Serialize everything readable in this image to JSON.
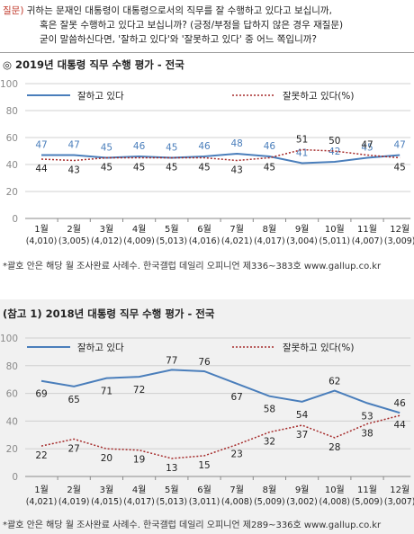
{
  "question": {
    "tag": "질문)",
    "line1": " 귀하는 문재인 대통령이 대통령으로서의 직무를 잘 수행하고 있다고 보십니까,",
    "line2": "혹은 잘못 수행하고 있다고 보십니까? (긍정/부정을 답하지 않은 경우 재질문)",
    "line3": "굳이 말씀하신다면, '잘하고 있다'와 '잘못하고 있다' 중 어느 쪽입니까?"
  },
  "colors": {
    "positive": "#4a7ebb",
    "negative": "#a52a2a",
    "axis": "#8a8a8a",
    "grid": "#d0d0d0"
  },
  "chart_data": [
    {
      "type": "line",
      "title": "◎  2019년 대통령 직무 수행 평가 - 전국",
      "categories": [
        "1월",
        "2월",
        "3월",
        "4월",
        "5월",
        "6월",
        "7월",
        "8월",
        "9월",
        "10월",
        "11월",
        "12월"
      ],
      "sample_sizes": [
        "(4,010)",
        "(3,005)",
        "(4,012)",
        "(4,009)",
        "(5,013)",
        "(4,016)",
        "(4,021)",
        "(4,017)",
        "(3,004)",
        "(5,011)",
        "(4,007)",
        "(3,009)"
      ],
      "ylim": [
        0,
        100
      ],
      "yticks": [
        "0",
        "20",
        "40",
        "60",
        "80",
        "100"
      ],
      "series": [
        {
          "name": "잘하고 있다",
          "style": "solid",
          "values": [
            47,
            47,
            45,
            46,
            45,
            46,
            48,
            46,
            41,
            42,
            45,
            47
          ]
        },
        {
          "name": "잘못하고 있다(%)",
          "style": "dotted",
          "values": [
            44,
            43,
            45,
            45,
            45,
            45,
            43,
            45,
            51,
            50,
            47,
            45
          ]
        }
      ],
      "legend": "top",
      "footnote": "*괄호 안은 해당 월 조사완료 사례수. 한국갤럽 데일리 오피니언 제336~383호 www.gallup.co.kr"
    },
    {
      "type": "line",
      "title": "(참고 1) 2018년 대통령 직무 수행 평가 - 전국",
      "categories": [
        "1월",
        "2월",
        "3월",
        "4월",
        "5월",
        "6월",
        "7월",
        "8월",
        "9월",
        "10월",
        "11월",
        "12월"
      ],
      "sample_sizes": [
        "(4,021)",
        "(4,019)",
        "(4,015)",
        "(4,017)",
        "(5,013)",
        "(3,011)",
        "(4,008)",
        "(5,009)",
        "(3,002)",
        "(4,008)",
        "(5,009)",
        "(3,007)"
      ],
      "ylim": [
        0,
        100
      ],
      "yticks": [
        "0",
        "20",
        "40",
        "60",
        "80",
        "100"
      ],
      "series": [
        {
          "name": "잘하고 있다",
          "style": "solid",
          "values": [
            69,
            65,
            71,
            72,
            77,
            76,
            67,
            58,
            54,
            62,
            53,
            46
          ]
        },
        {
          "name": "잘못하고 있다(%)",
          "style": "dotted",
          "values": [
            22,
            27,
            20,
            19,
            13,
            15,
            23,
            32,
            37,
            28,
            38,
            44
          ]
        }
      ],
      "legend": "top",
      "footnote": "*괄호 안은 해당 월 조사완료 사례수. 한국갤럽 데일리 오피니언 제289~336호 www.gallup.co.kr"
    }
  ]
}
